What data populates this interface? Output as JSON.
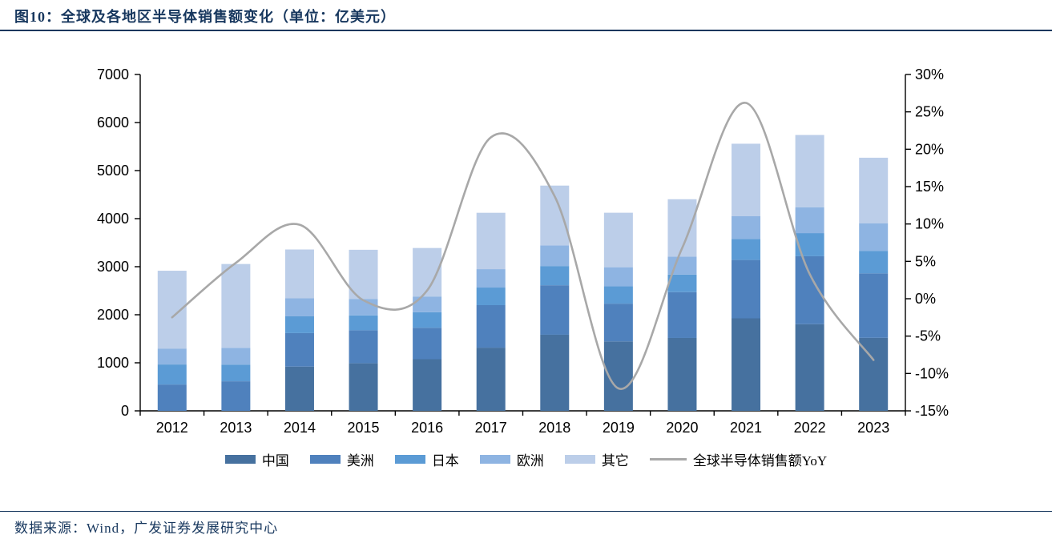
{
  "header": {
    "title": "图10：全球及各地区半导体销售额变化（单位：亿美元）"
  },
  "footer": {
    "source": "数据来源：Wind，广发证券发展研究中心"
  },
  "chart_data": {
    "type": "stacked-bar+line",
    "title": "全球及各地区半导体销售额变化",
    "unit": "亿美元",
    "categories": [
      "2012",
      "2013",
      "2014",
      "2015",
      "2016",
      "2017",
      "2018",
      "2019",
      "2020",
      "2021",
      "2022",
      "2023"
    ],
    "series": [
      {
        "name": "中国",
        "key": "china",
        "color": "#46719F",
        "values": [
          0,
          0,
          920,
          990,
          1075,
          1315,
          1584,
          1445,
          1517,
          1925,
          1804,
          1519
        ]
      },
      {
        "name": "美洲",
        "key": "americas",
        "color": "#4F81BD",
        "values": [
          548,
          615,
          698,
          687,
          655,
          885,
          1030,
          786,
          954,
          1215,
          1414,
          1342
        ]
      },
      {
        "name": "日本",
        "key": "japan",
        "color": "#5B9BD5",
        "values": [
          417,
          348,
          349,
          310,
          323,
          366,
          400,
          360,
          365,
          437,
          481,
          469
        ]
      },
      {
        "name": "欧洲",
        "key": "europe",
        "color": "#8EB4E2",
        "values": [
          332,
          349,
          375,
          343,
          327,
          383,
          430,
          398,
          374,
          478,
          539,
          575
        ]
      },
      {
        "name": "其它",
        "key": "other",
        "color": "#BCCEE9",
        "values": [
          1619,
          1744,
          1016,
          1022,
          1009,
          1173,
          1244,
          1134,
          1194,
          1504,
          1503,
          1363
        ]
      }
    ],
    "line": {
      "name": "全球半导体销售额YoY",
      "key": "global-yoy",
      "color": "#A8A8A8",
      "values": [
        -2.5,
        4.8,
        9.9,
        -0.2,
        1.1,
        21.6,
        13.7,
        -12.0,
        6.8,
        26.2,
        3.3,
        -8.2
      ]
    },
    "left_axis": {
      "min": 0,
      "max": 7000,
      "step": 1000,
      "ticks": [
        "7000",
        "6000",
        "5000",
        "4000",
        "3000",
        "2000",
        "1000",
        "0"
      ]
    },
    "right_axis": {
      "min": -15,
      "max": 30,
      "step": 5,
      "ticks": [
        "30%",
        "25%",
        "20%",
        "15%",
        "10%",
        "5%",
        "0%",
        "-5%",
        "-10%",
        "-15%"
      ]
    },
    "legend_position": "bottom",
    "grid": "off",
    "axis_color": "#000000",
    "accent_color": "#17375e"
  }
}
